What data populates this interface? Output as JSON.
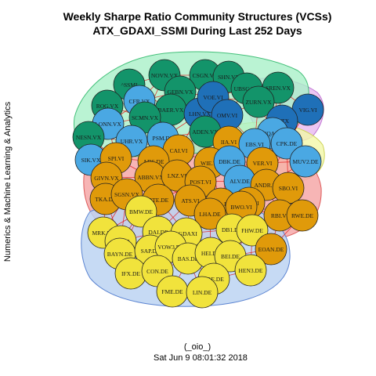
{
  "title_line1": "Weekly Sharpe Ratio Community Structures (VCSs)",
  "title_line2": "ATX_GDAXI_SSMI During Last 252 Days",
  "side_label": "Numerics & Machine Learning & Analytics",
  "footer_line1": "(_oio_)",
  "footer_line2": "Sat Jun  9 08:01:32 2018",
  "colors": {
    "green": "#13946a",
    "blue": "#4aa8e3",
    "darkblue": "#1f70b8",
    "orange": "#e09a0a",
    "yellow": "#f1e33c",
    "edge": "#e21a1a"
  },
  "nodes": [
    {
      "label": "^SSMI",
      "group": "green"
    },
    {
      "label": "NOVN.VX",
      "group": "green"
    },
    {
      "label": "CSGN.VX",
      "group": "green"
    },
    {
      "label": "SHN.VX",
      "group": "green"
    },
    {
      "label": "GEBN.VX",
      "group": "green"
    },
    {
      "label": "UBSG.VX",
      "group": "green"
    },
    {
      "label": "SREN.VX",
      "group": "green"
    },
    {
      "label": "ROG.VX",
      "group": "green"
    },
    {
      "label": "CFR.VX",
      "group": "blue"
    },
    {
      "label": "BAER.VX",
      "group": "green"
    },
    {
      "label": "LHN.VX",
      "group": "darkblue"
    },
    {
      "label": "VOE.VI",
      "group": "darkblue"
    },
    {
      "label": "ZURN.VX",
      "group": "green"
    },
    {
      "label": "SCMN.VX",
      "group": "green"
    },
    {
      "label": "OMV.VI",
      "group": "darkblue"
    },
    {
      "label": "VIG.VI",
      "group": "darkblue"
    },
    {
      "label": "LONN.VX",
      "group": "blue"
    },
    {
      "label": "^ATX",
      "group": "darkblue"
    },
    {
      "label": "NESN.VX",
      "group": "green"
    },
    {
      "label": "ADEN.VX",
      "group": "green"
    },
    {
      "label": "UQA.VI",
      "group": "blue"
    },
    {
      "label": "UHR.VX",
      "group": "blue"
    },
    {
      "label": "PSM.DE",
      "group": "blue"
    },
    {
      "label": "IIA.VI",
      "group": "orange"
    },
    {
      "label": "EBS.VI",
      "group": "blue"
    },
    {
      "label": "CPK.DE",
      "group": "blue"
    },
    {
      "label": "SIK.VX",
      "group": "blue"
    },
    {
      "label": "SPI.VI",
      "group": "orange"
    },
    {
      "label": "CAI.VI",
      "group": "orange"
    },
    {
      "label": "MUV2.DE",
      "group": "blue"
    },
    {
      "label": "WIE.VI",
      "group": "orange"
    },
    {
      "label": "DBK.DE",
      "group": "blue"
    },
    {
      "label": "VER.VI",
      "group": "orange"
    },
    {
      "label": "ADS.DE",
      "group": "orange"
    },
    {
      "label": "GIVN.VX",
      "group": "orange"
    },
    {
      "label": "ABBN.VX",
      "group": "orange"
    },
    {
      "label": "LNZ.VI",
      "group": "orange"
    },
    {
      "label": "POST.VI",
      "group": "orange"
    },
    {
      "label": "ALV.DE",
      "group": "blue"
    },
    {
      "label": "ANDR.VI",
      "group": "orange"
    },
    {
      "label": "SBO.VI",
      "group": "orange"
    },
    {
      "label": "TKA.DE",
      "group": "orange"
    },
    {
      "label": "SGSN.VX",
      "group": "orange"
    },
    {
      "label": "DTE.DE",
      "group": "orange"
    },
    {
      "label": "ATS.VI",
      "group": "orange"
    },
    {
      "label": "VNA.DE",
      "group": "orange"
    },
    {
      "label": "TKA.VI",
      "group": "orange"
    },
    {
      "label": "BMW.DE",
      "group": "yellow"
    },
    {
      "label": "LHA.DE",
      "group": "orange"
    },
    {
      "label": "BWO.VI",
      "group": "orange"
    },
    {
      "label": "RBI.VI",
      "group": "orange"
    },
    {
      "label": "RWE.DE",
      "group": "orange"
    },
    {
      "label": "MRK.DE",
      "group": "yellow"
    },
    {
      "label": "DAI.DE",
      "group": "yellow"
    },
    {
      "label": "^GDAXI",
      "group": "yellow"
    },
    {
      "label": "DB1.DE",
      "group": "yellow"
    },
    {
      "label": "FHW.DE",
      "group": "yellow"
    },
    {
      "label": "SIE.DE",
      "group": "yellow"
    },
    {
      "label": "BAYN.DE",
      "group": "yellow"
    },
    {
      "label": "SAP.DE",
      "group": "yellow"
    },
    {
      "label": "VOW3.DE",
      "group": "yellow"
    },
    {
      "label": "BAS.DE",
      "group": "yellow"
    },
    {
      "label": "HEI.DE",
      "group": "yellow"
    },
    {
      "label": "BEI.DE",
      "group": "yellow"
    },
    {
      "label": "EOAN.DE",
      "group": "orange"
    },
    {
      "label": "IFX.DE",
      "group": "yellow"
    },
    {
      "label": "CON.DE",
      "group": "yellow"
    },
    {
      "label": "FRE.DE",
      "group": "yellow"
    },
    {
      "label": "HEN3.DE",
      "group": "yellow"
    },
    {
      "label": "FME.DE",
      "group": "yellow"
    },
    {
      "label": "LIN.DE",
      "group": "yellow"
    }
  ]
}
